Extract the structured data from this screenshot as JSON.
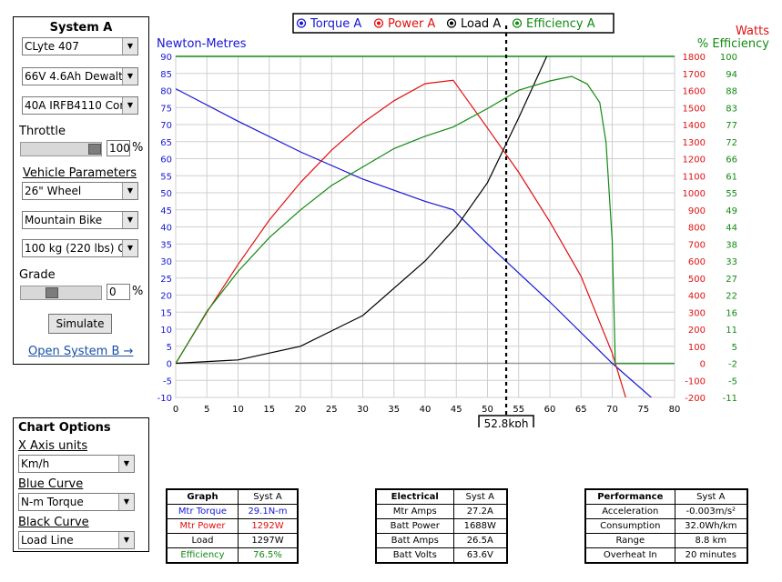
{
  "system": {
    "title": "System A",
    "motor": "CLyte 407",
    "battery": "66V 4.6Ah Dewalt",
    "controller": "40A IRFB4110 Cor",
    "throttle_label": "Throttle",
    "throttle_value": "100",
    "throttle_unit": "%",
    "throttle_fraction": 1.0,
    "vehicle_params_label": "Vehicle Parameters",
    "wheel": "26\"  Wheel",
    "vehicle_type": "Mountain Bike",
    "weight": "100 kg (220 lbs) G",
    "grade_label": "Grade",
    "grade_value": "0",
    "grade_unit": "%",
    "grade_fraction": 0.35,
    "simulate_label": "Simulate",
    "open_b_label": "Open System B →"
  },
  "chart_options": {
    "title": "Chart Options",
    "x_axis_label": "X Axis units",
    "x_axis_value": "Km/h",
    "blue_label": "Blue Curve",
    "blue_value": "N-m Torque",
    "black_label": "Black Curve",
    "black_value": "Load Line"
  },
  "chart_data": {
    "type": "line",
    "legend": [
      {
        "name": "Torque A",
        "color": "#1515d6"
      },
      {
        "name": "Power A",
        "color": "#e01010"
      },
      {
        "name": "Load A",
        "color": "#000000"
      },
      {
        "name": "Efficiency A",
        "color": "#118a11"
      }
    ],
    "y_left_label": "Newton-Metres",
    "y_right1_label": "Watts",
    "y_right2_label": "% Efficiency",
    "x_ticks": [
      "0",
      "5",
      "10",
      "15",
      "20",
      "25",
      "30",
      "35",
      "40",
      "45",
      "50",
      "55",
      "60",
      "65",
      "70",
      "75",
      "80"
    ],
    "y_left_ticks": [
      "-10",
      "-5",
      "0",
      "5",
      "10",
      "15",
      "20",
      "25",
      "30",
      "35",
      "40",
      "45",
      "50",
      "55",
      "60",
      "65",
      "70",
      "75",
      "80",
      "85",
      "90"
    ],
    "y_watts_ticks": [
      "-200",
      "-100",
      "0",
      "100",
      "200",
      "300",
      "400",
      "500",
      "600",
      "700",
      "800",
      "900",
      "1000",
      "1100",
      "1200",
      "1300",
      "1400",
      "1500",
      "1600",
      "1700",
      "1800"
    ],
    "y_eff_ticks": [
      "-11",
      "-5",
      "-2",
      "5",
      "11",
      "16",
      "22",
      "27",
      "33",
      "38",
      "44",
      "49",
      "55",
      "61",
      "66",
      "72",
      "77",
      "83",
      "88",
      "94",
      "100"
    ],
    "xlim": [
      0,
      80
    ],
    "ylim_left": [
      -10,
      90
    ],
    "ylim_watts": [
      -200,
      1800
    ],
    "ylim_eff": [
      -11,
      100
    ],
    "grid": true,
    "marker_x": 53,
    "marker_label": "52.8kph",
    "series": [
      {
        "name": "Torque A",
        "axis": "left",
        "color": "#1515d6",
        "x": [
          0,
          10,
          20,
          30,
          40,
          44.5,
          50,
          60,
          70,
          77.5
        ],
        "y": [
          80.5,
          71,
          62,
          54,
          47.5,
          45,
          35,
          18,
          0,
          -12
        ]
      },
      {
        "name": "Power A",
        "axis": "watts",
        "color": "#e01010",
        "x": [
          0,
          5,
          10,
          15,
          20,
          25,
          30,
          35,
          40,
          44.5,
          50,
          55,
          60,
          65,
          70,
          73
        ],
        "y": [
          0,
          300,
          580,
          840,
          1060,
          1250,
          1410,
          1540,
          1640,
          1660,
          1380,
          1120,
          830,
          510,
          60,
          -300
        ]
      },
      {
        "name": "Load A",
        "axis": "left",
        "color": "#000000",
        "x": [
          0,
          10,
          20,
          30,
          40,
          45,
          50,
          55,
          60
        ],
        "y": [
          0,
          1,
          5,
          14,
          30,
          40,
          53,
          72,
          92
        ]
      },
      {
        "name": "Efficiency A",
        "axis": "eff",
        "color": "#118a11",
        "x": [
          0,
          5,
          10,
          15,
          20,
          25,
          30,
          35,
          40,
          44.5,
          50,
          55,
          60,
          63.5,
          66,
          68,
          69,
          70,
          70.5,
          80
        ],
        "y": [
          0,
          17,
          30,
          41,
          50,
          58,
          64,
          70,
          74,
          77,
          83,
          89,
          92,
          93.5,
          91,
          85,
          72,
          40,
          0,
          0
        ]
      }
    ]
  },
  "tables": {
    "graph": {
      "headers": [
        "Graph",
        "Syst A"
      ],
      "rows": [
        {
          "label": "Mtr Torque",
          "value": "29.1N-m",
          "color": "#1515d6"
        },
        {
          "label": "Mtr Power",
          "value": "1292W",
          "color": "#e01010"
        },
        {
          "label": "Load",
          "value": "1297W",
          "color": "#000000"
        },
        {
          "label": "Efficiency",
          "value": "76.5%",
          "color": "#118a11"
        }
      ]
    },
    "electrical": {
      "headers": [
        "Electrical",
        "Syst A"
      ],
      "rows": [
        {
          "label": "Mtr Amps",
          "value": "27.2A"
        },
        {
          "label": "Batt Power",
          "value": "1688W"
        },
        {
          "label": "Batt Amps",
          "value": "26.5A"
        },
        {
          "label": "Batt Volts",
          "value": "63.6V"
        }
      ]
    },
    "performance": {
      "headers": [
        "Performance",
        "Syst A"
      ],
      "rows": [
        {
          "label": "Acceleration",
          "value": "-0.003m/s²"
        },
        {
          "label": "Consumption",
          "value": "32.0Wh/km"
        },
        {
          "label": "Range",
          "value": "8.8 km"
        },
        {
          "label": "Overheat In",
          "value": "20 minutes"
        }
      ]
    }
  }
}
